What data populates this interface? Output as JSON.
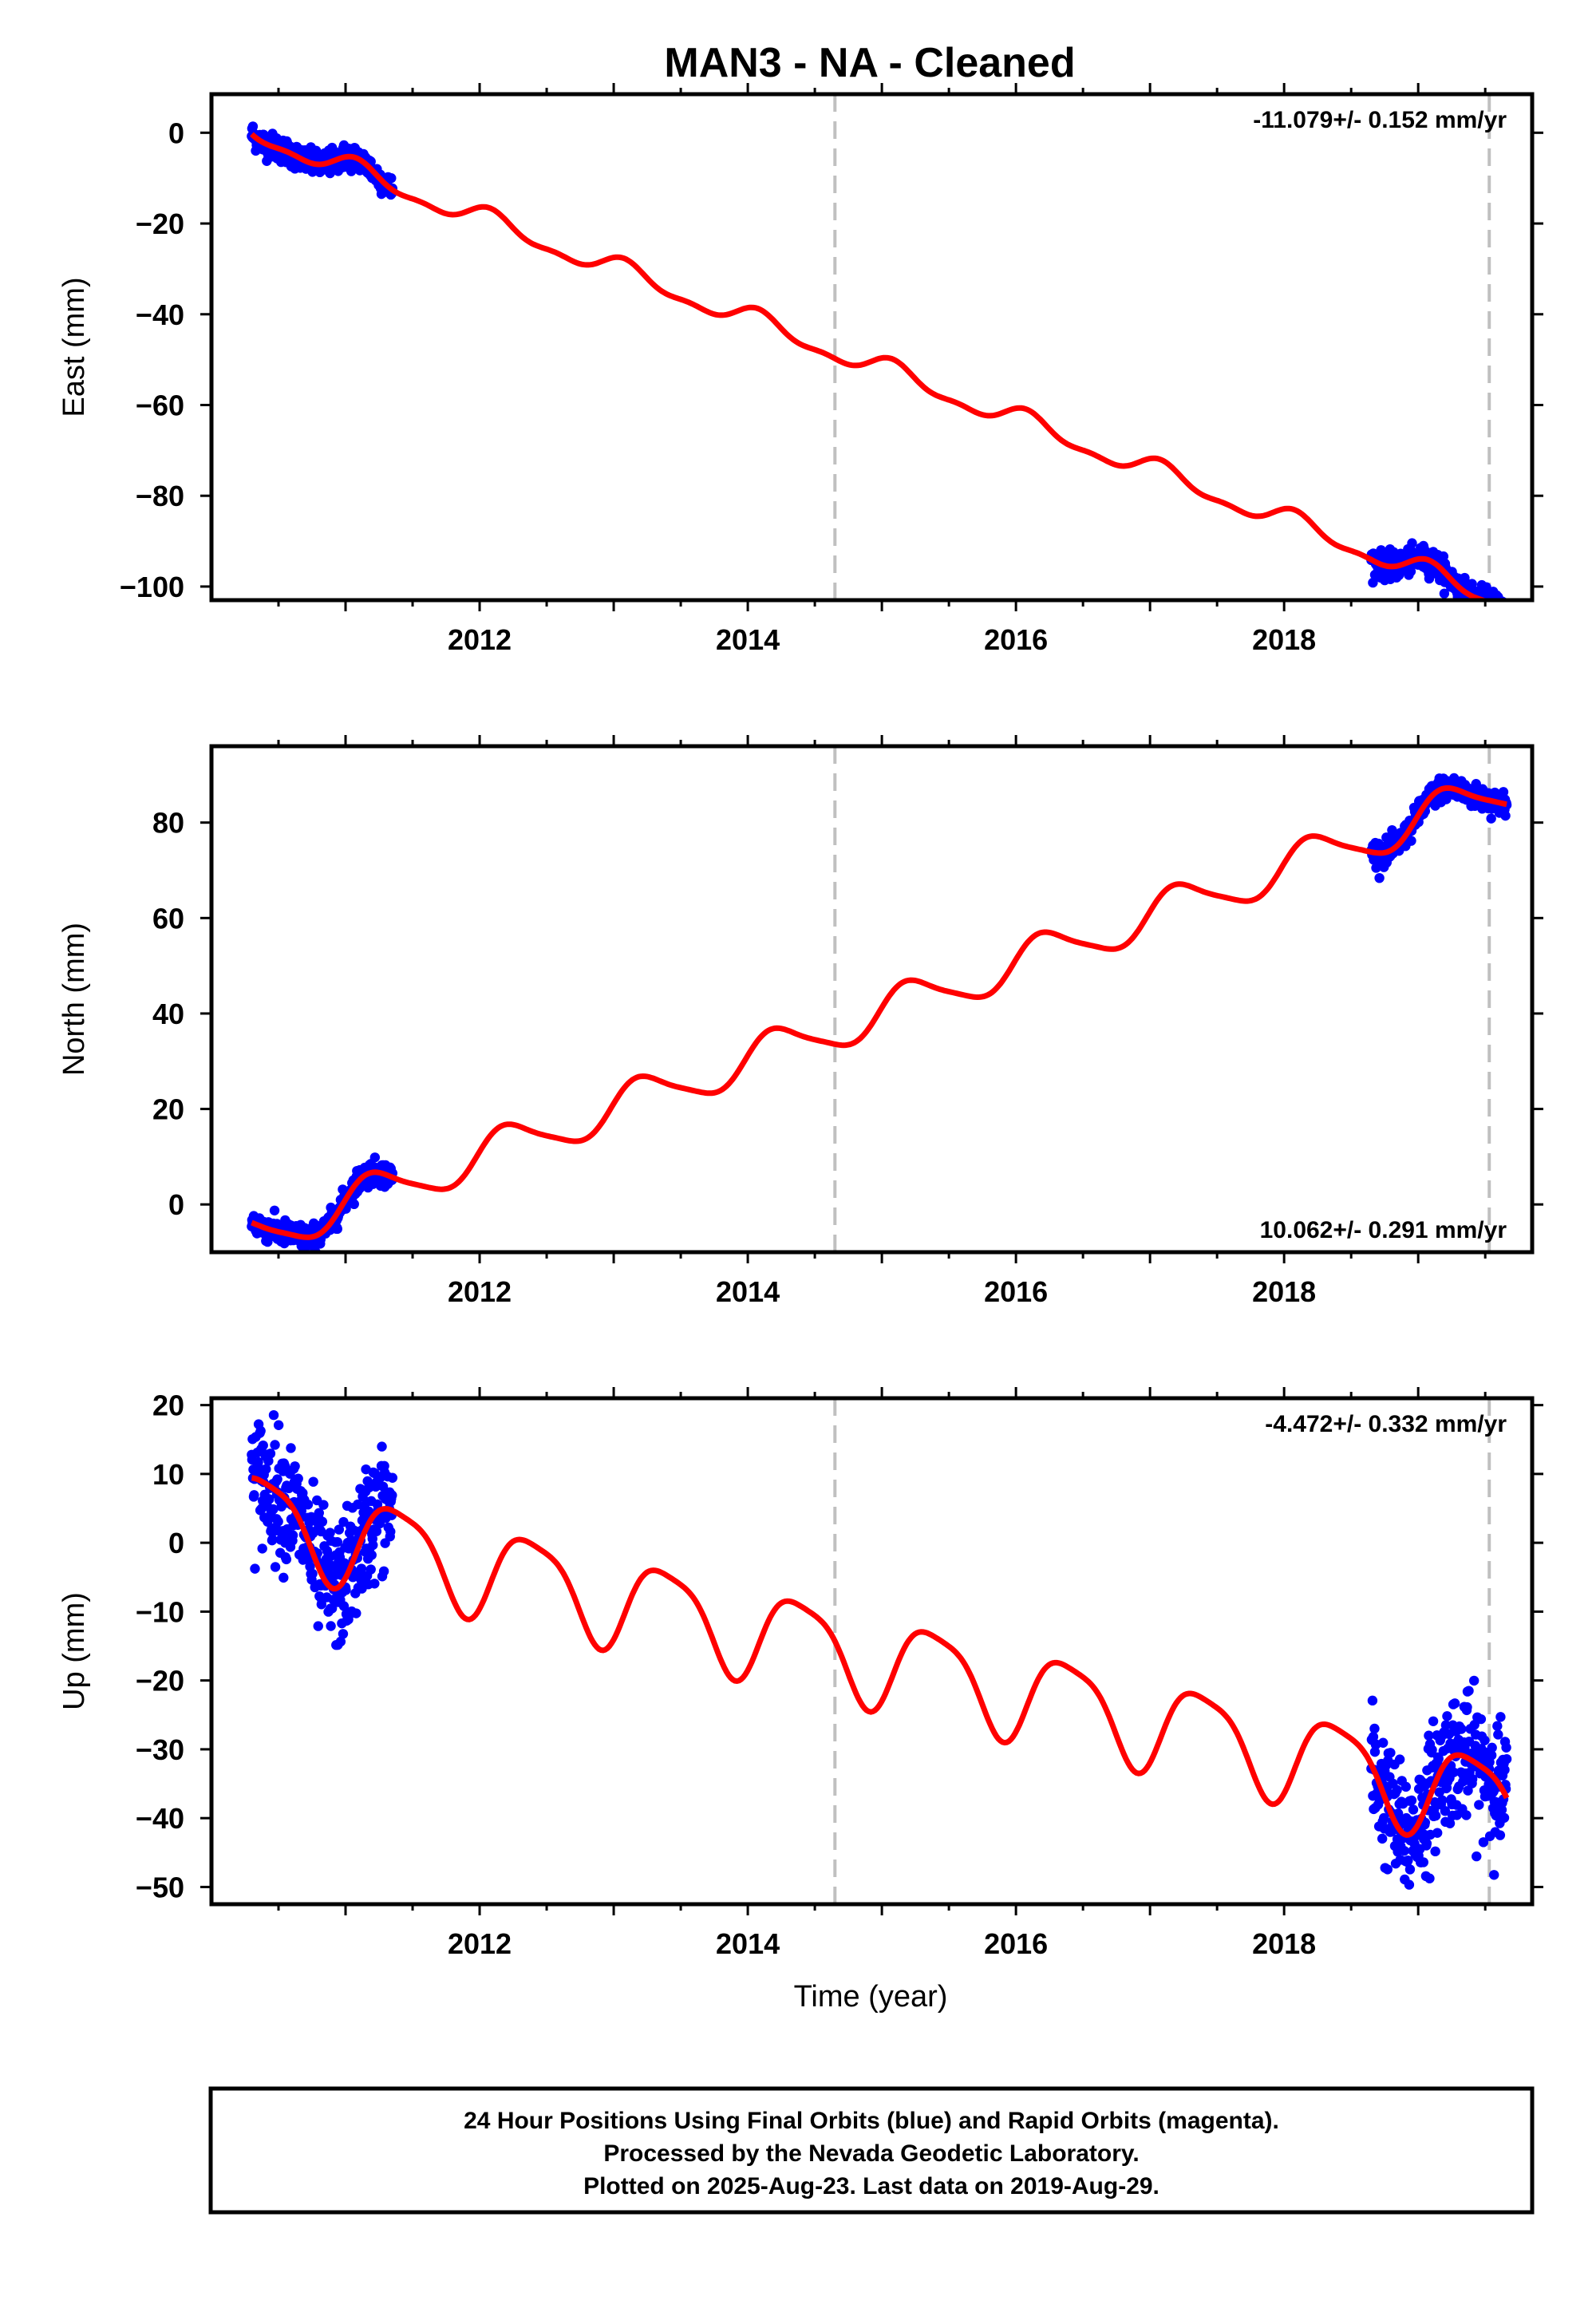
{
  "title": "MAN3  - NA - Cleaned",
  "footer": {
    "line1": "24 Hour Positions Using Final Orbits (blue) and Rapid Orbits (magenta).",
    "line2": "Processed by the Nevada Geodetic Laboratory.",
    "line3": "Plotted on 2025-Aug-23. Last data on 2019-Aug-29."
  },
  "colors": {
    "data_points": "#0000ff",
    "model_fit": "#ff0000",
    "event_lines": "#c0c0c0",
    "frame": "#000000"
  },
  "chart_data": [
    {
      "type": "scatter",
      "panel": "east",
      "ylabel": "East (mm)",
      "xlabel": "",
      "xlim": [
        2010.0,
        2019.85
      ],
      "ylim": [
        -103,
        8.5
      ],
      "xticks": [
        "2012",
        "2014",
        "2016",
        "2018"
      ],
      "yticks": [
        "0",
        "−20",
        "−40",
        "−60",
        "−80",
        "−100"
      ],
      "rate": "-11.079+/- 0.152 mm/yr",
      "event_lines_x": [
        2014.65,
        2019.53
      ],
      "data_segments": [
        {
          "start": 2010.3,
          "end": 2011.35
        },
        {
          "start": 2018.65,
          "end": 2019.66
        }
      ],
      "model": {
        "intercept": 0,
        "slope": -11.079,
        "t0": 2010.3,
        "annual_amp": 2.2,
        "annual_phase": 1.0,
        "semiannual_amp": 0.9
      },
      "noise_mm": 1.4
    },
    {
      "type": "scatter",
      "panel": "north",
      "ylabel": "North (mm)",
      "xlabel": "",
      "xlim": [
        2010.0,
        2019.85
      ],
      "ylim": [
        -10,
        96
      ],
      "xticks": [
        "2012",
        "2014",
        "2016",
        "2018"
      ],
      "yticks": [
        "0",
        "20",
        "40",
        "60",
        "80"
      ],
      "rate": "10.062+/- 0.291 mm/yr",
      "event_lines_x": [
        2014.65,
        2019.53
      ],
      "data_segments": [
        {
          "start": 2010.3,
          "end": 2011.35
        },
        {
          "start": 2018.65,
          "end": 2019.66
        }
      ],
      "model": {
        "intercept": -7.0,
        "slope": 10.062,
        "t0": 2010.3,
        "annual_amp": 4.3,
        "annual_phase": 0.2,
        "semiannual_amp": 0.8
      },
      "noise_mm": 1.3
    },
    {
      "type": "scatter",
      "panel": "up",
      "ylabel": "Up (mm)",
      "xlabel": "Time (year)",
      "xlim": [
        2010.0,
        2019.85
      ],
      "ylim": [
        -52.5,
        21
      ],
      "xticks": [
        "2012",
        "2014",
        "2016",
        "2018"
      ],
      "yticks": [
        "20",
        "10",
        "0",
        "−10",
        "−20",
        "−30",
        "−40",
        "−50"
      ],
      "rate": "-4.472+/- 0.332 mm/yr",
      "event_lines_x": [
        2014.65,
        2019.53
      ],
      "data_segments": [
        {
          "start": 2010.3,
          "end": 2011.35
        },
        {
          "start": 2018.65,
          "end": 2019.66
        }
      ],
      "model": {
        "intercept": 4.0,
        "slope": -4.472,
        "t0": 2010.3,
        "annual_amp": 6.5,
        "annual_phase": -0.9,
        "semiannual_amp": 1.5
      },
      "noise_mm": 4.5
    }
  ]
}
